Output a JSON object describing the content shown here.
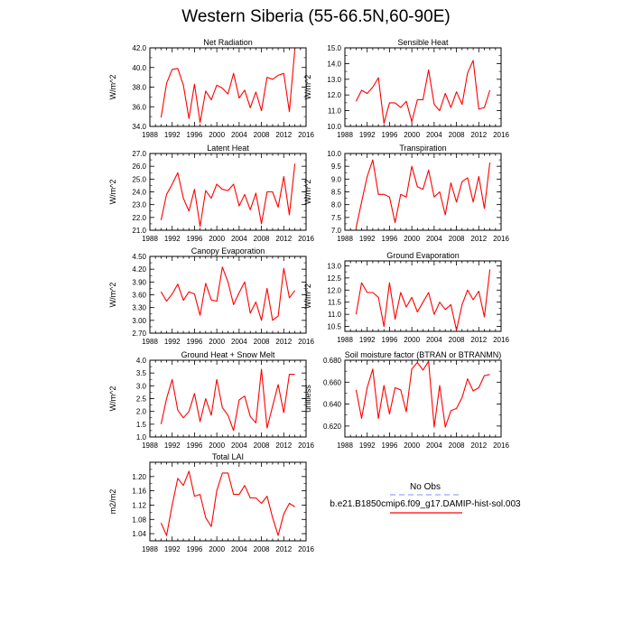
{
  "title": "Western Siberia (55-66.5N,60-90E)",
  "colors": {
    "model": "#ff0000",
    "obs": "#aab4ff",
    "axis": "#000000"
  },
  "legend": {
    "obs_label": "No Obs",
    "model_label": "b.e21.B1850cmip6.f09_g17.DAMIP-hist-sol.003"
  },
  "chart_data": [
    {
      "type": "line",
      "title": "Net Radiation",
      "ylabel": "W/m^2",
      "xlim": [
        1988,
        2016
      ],
      "xticks": [
        1988,
        1992,
        1996,
        2000,
        2004,
        2008,
        2012,
        2016
      ],
      "ylim": [
        34.0,
        42.0
      ],
      "yticks": [
        34.0,
        36.0,
        38.0,
        40.0,
        42.0
      ],
      "ytick_labels": [
        "34.0",
        "36.0",
        "38.0",
        "40.0",
        "42.0"
      ],
      "x": [
        1990,
        1991,
        1992,
        1993,
        1994,
        1995,
        1996,
        1997,
        1998,
        1999,
        2000,
        2001,
        2002,
        2003,
        2004,
        2005,
        2006,
        2007,
        2008,
        2009,
        2010,
        2011,
        2012,
        2013,
        2014
      ],
      "series": [
        {
          "values": [
            34.9,
            38.4,
            39.8,
            39.9,
            38.2,
            34.8,
            38.3,
            34.4,
            37.6,
            36.7,
            38.2,
            37.9,
            37.3,
            39.4,
            36.9,
            37.7,
            35.9,
            37.5,
            35.6,
            39.0,
            38.8,
            39.2,
            39.4,
            35.5,
            41.9
          ]
        }
      ]
    },
    {
      "type": "line",
      "title": "Sensible Heat",
      "ylabel": "W/m^2",
      "xlim": [
        1988,
        2016
      ],
      "xticks": [
        1988,
        1992,
        1996,
        2000,
        2004,
        2008,
        2012,
        2016
      ],
      "ylim": [
        10.0,
        15.0
      ],
      "yticks": [
        10.0,
        11.0,
        12.0,
        13.0,
        14.0,
        15.0
      ],
      "ytick_labels": [
        "10.0",
        "11.0",
        "12.0",
        "13.0",
        "14.0",
        "15.0"
      ],
      "x": [
        1990,
        1991,
        1992,
        1993,
        1994,
        1995,
        1996,
        1997,
        1998,
        1999,
        2000,
        2001,
        2002,
        2003,
        2004,
        2005,
        2006,
        2007,
        2008,
        2009,
        2010,
        2011,
        2012,
        2013,
        2014
      ],
      "series": [
        {
          "values": [
            11.6,
            12.3,
            12.1,
            12.5,
            13.1,
            10.2,
            11.5,
            11.5,
            11.2,
            11.6,
            10.3,
            11.7,
            11.7,
            13.6,
            11.4,
            11.0,
            12.1,
            11.2,
            12.2,
            11.4,
            13.4,
            14.2,
            11.1,
            11.2,
            12.3
          ]
        }
      ]
    },
    {
      "type": "line",
      "title": "Latent Heat",
      "ylabel": "W/m^2",
      "xlim": [
        1988,
        2016
      ],
      "xticks": [
        1988,
        1992,
        1996,
        2000,
        2004,
        2008,
        2012,
        2016
      ],
      "ylim": [
        21.0,
        27.0
      ],
      "yticks": [
        21.0,
        22.0,
        23.0,
        24.0,
        25.0,
        26.0,
        27.0
      ],
      "ytick_labels": [
        "21.0",
        "22.0",
        "23.0",
        "24.0",
        "25.0",
        "26.0",
        "27.0"
      ],
      "x": [
        1990,
        1991,
        1992,
        1993,
        1994,
        1995,
        1996,
        1997,
        1998,
        1999,
        2000,
        2001,
        2002,
        2003,
        2004,
        2005,
        2006,
        2007,
        2008,
        2009,
        2010,
        2011,
        2012,
        2013,
        2014
      ],
      "series": [
        {
          "values": [
            21.8,
            23.8,
            24.6,
            25.5,
            23.5,
            22.5,
            24.2,
            21.3,
            24.1,
            23.5,
            24.6,
            24.2,
            24.1,
            24.6,
            22.9,
            23.8,
            22.6,
            23.9,
            21.5,
            24.0,
            24.0,
            22.8,
            25.2,
            22.2,
            26.2
          ]
        }
      ]
    },
    {
      "type": "line",
      "title": "Transpiration",
      "ylabel": "W/m^2",
      "xlim": [
        1988,
        2016
      ],
      "xticks": [
        1988,
        1992,
        1996,
        2000,
        2004,
        2008,
        2012,
        2016
      ],
      "ylim": [
        7.0,
        10.0
      ],
      "yticks": [
        7.0,
        7.5,
        8.0,
        8.5,
        9.0,
        9.5,
        10.0
      ],
      "ytick_labels": [
        "7.0",
        "7.5",
        "8.0",
        "8.5",
        "9.0",
        "9.5",
        "10.0"
      ],
      "x": [
        1990,
        1991,
        1992,
        1993,
        1994,
        1995,
        1996,
        1997,
        1998,
        1999,
        2000,
        2001,
        2002,
        2003,
        2004,
        2005,
        2006,
        2007,
        2008,
        2009,
        2010,
        2011,
        2012,
        2013,
        2014
      ],
      "series": [
        {
          "values": [
            7.1,
            8.1,
            9.1,
            9.75,
            8.4,
            8.4,
            8.3,
            7.3,
            8.4,
            8.3,
            9.5,
            8.7,
            8.6,
            9.35,
            8.3,
            8.5,
            7.6,
            8.85,
            8.1,
            8.9,
            9.05,
            8.1,
            9.1,
            7.85,
            9.65
          ]
        }
      ]
    },
    {
      "type": "line",
      "title": "Canopy Evaporation",
      "ylabel": "W/m^2",
      "xlim": [
        1988,
        2016
      ],
      "xticks": [
        1988,
        1992,
        1996,
        2000,
        2004,
        2008,
        2012,
        2016
      ],
      "ylim": [
        2.7,
        4.5
      ],
      "yticks": [
        2.7,
        3.0,
        3.3,
        3.6,
        3.9,
        4.2,
        4.5
      ],
      "ytick_labels": [
        "2.70",
        "3.00",
        "3.30",
        "3.60",
        "3.90",
        "4.20",
        "4.50"
      ],
      "x": [
        1990,
        1991,
        1992,
        1993,
        1994,
        1995,
        1996,
        1997,
        1998,
        1999,
        2000,
        2001,
        2002,
        2003,
        2004,
        2005,
        2006,
        2007,
        2008,
        2009,
        2010,
        2011,
        2012,
        2013,
        2014
      ],
      "series": [
        {
          "values": [
            3.67,
            3.45,
            3.62,
            3.85,
            3.47,
            3.67,
            3.62,
            3.12,
            3.87,
            3.48,
            3.45,
            4.25,
            3.9,
            3.37,
            3.65,
            3.9,
            3.17,
            3.43,
            3.0,
            3.75,
            3.0,
            3.1,
            4.22,
            3.53,
            3.7
          ]
        }
      ]
    },
    {
      "type": "line",
      "title": "Ground Evaporation",
      "ylabel": "W/m^2",
      "xlim": [
        1988,
        2016
      ],
      "xticks": [
        1988,
        1992,
        1996,
        2000,
        2004,
        2008,
        2012,
        2016
      ],
      "ylim": [
        10.3,
        13.2
      ],
      "yticks": [
        10.5,
        11.0,
        11.5,
        12.0,
        12.5,
        13.0
      ],
      "ytick_labels": [
        "10.5",
        "11.0",
        "11.5",
        "12.0",
        "12.5",
        "13.0"
      ],
      "x": [
        1990,
        1991,
        1992,
        1993,
        1994,
        1995,
        1996,
        1997,
        1998,
        1999,
        2000,
        2001,
        2002,
        2003,
        2004,
        2005,
        2006,
        2007,
        2008,
        2009,
        2010,
        2011,
        2012,
        2013,
        2014
      ],
      "series": [
        {
          "values": [
            11.0,
            12.3,
            11.9,
            11.9,
            11.7,
            10.5,
            12.3,
            10.8,
            11.9,
            11.3,
            11.7,
            11.1,
            11.5,
            11.9,
            11.0,
            11.5,
            11.2,
            11.4,
            10.35,
            11.4,
            12.0,
            11.6,
            11.95,
            10.9,
            12.85
          ]
        }
      ]
    },
    {
      "type": "line",
      "title": "Ground Heat + Snow Melt",
      "ylabel": "W/m^2",
      "xlim": [
        1988,
        2016
      ],
      "xticks": [
        1988,
        1992,
        1996,
        2000,
        2004,
        2008,
        2012,
        2016
      ],
      "ylim": [
        1.0,
        4.0
      ],
      "yticks": [
        1.0,
        1.5,
        2.0,
        2.5,
        3.0,
        3.5,
        4.0
      ],
      "ytick_labels": [
        "1.0",
        "1.5",
        "2.0",
        "2.5",
        "3.0",
        "3.5",
        "4.0"
      ],
      "x": [
        1990,
        1991,
        1992,
        1993,
        1994,
        1995,
        1996,
        1997,
        1998,
        1999,
        2000,
        2001,
        2002,
        2003,
        2004,
        2005,
        2006,
        2007,
        2008,
        2009,
        2010,
        2011,
        2012,
        2013,
        2014
      ],
      "series": [
        {
          "values": [
            1.5,
            2.5,
            3.25,
            2.05,
            1.75,
            2.0,
            2.7,
            1.6,
            2.5,
            1.85,
            3.25,
            2.15,
            1.85,
            1.25,
            2.45,
            2.6,
            1.8,
            1.55,
            3.65,
            1.35,
            2.2,
            3.05,
            1.95,
            3.45,
            3.45
          ]
        }
      ]
    },
    {
      "type": "line",
      "title": "Soil moisture factor (BTRAN or BTRANMN)",
      "ylabel": "unitless",
      "xlim": [
        1988,
        2016
      ],
      "xticks": [
        1988,
        1992,
        1996,
        2000,
        2004,
        2008,
        2012,
        2016
      ],
      "ylim": [
        0.61,
        0.68
      ],
      "yticks": [
        0.62,
        0.64,
        0.66,
        0.68
      ],
      "ytick_labels": [
        "0.620",
        "0.640",
        "0.660",
        "0.680"
      ],
      "x": [
        1990,
        1991,
        1992,
        1993,
        1994,
        1995,
        1996,
        1997,
        1998,
        1999,
        2000,
        2001,
        2002,
        2003,
        2004,
        2005,
        2006,
        2007,
        2008,
        2009,
        2010,
        2011,
        2012,
        2013,
        2014
      ],
      "series": [
        {
          "values": [
            0.653,
            0.627,
            0.655,
            0.672,
            0.627,
            0.657,
            0.631,
            0.655,
            0.653,
            0.633,
            0.672,
            0.678,
            0.671,
            0.679,
            0.619,
            0.657,
            0.619,
            0.634,
            0.636,
            0.646,
            0.663,
            0.652,
            0.655,
            0.666,
            0.667
          ]
        }
      ]
    },
    {
      "type": "line",
      "title": "Total LAI",
      "ylabel": "m2/m2",
      "xlim": [
        1988,
        2016
      ],
      "xticks": [
        1988,
        1992,
        1996,
        2000,
        2004,
        2008,
        2012,
        2016
      ],
      "ylim": [
        1.02,
        1.24
      ],
      "yticks": [
        1.04,
        1.08,
        1.12,
        1.16,
        1.2
      ],
      "ytick_labels": [
        "1.04",
        "1.08",
        "1.12",
        "1.16",
        "1.20"
      ],
      "x": [
        1990,
        1991,
        1992,
        1993,
        1994,
        1995,
        1996,
        1997,
        1998,
        1999,
        2000,
        2001,
        2002,
        2003,
        2004,
        2005,
        2006,
        2007,
        2008,
        2009,
        2010,
        2011,
        2012,
        2013,
        2014
      ],
      "series": [
        {
          "values": [
            1.07,
            1.035,
            1.12,
            1.195,
            1.175,
            1.215,
            1.145,
            1.15,
            1.085,
            1.06,
            1.16,
            1.21,
            1.21,
            1.15,
            1.15,
            1.175,
            1.14,
            1.14,
            1.125,
            1.145,
            1.085,
            1.035,
            1.095,
            1.125,
            1.115
          ]
        }
      ]
    }
  ]
}
